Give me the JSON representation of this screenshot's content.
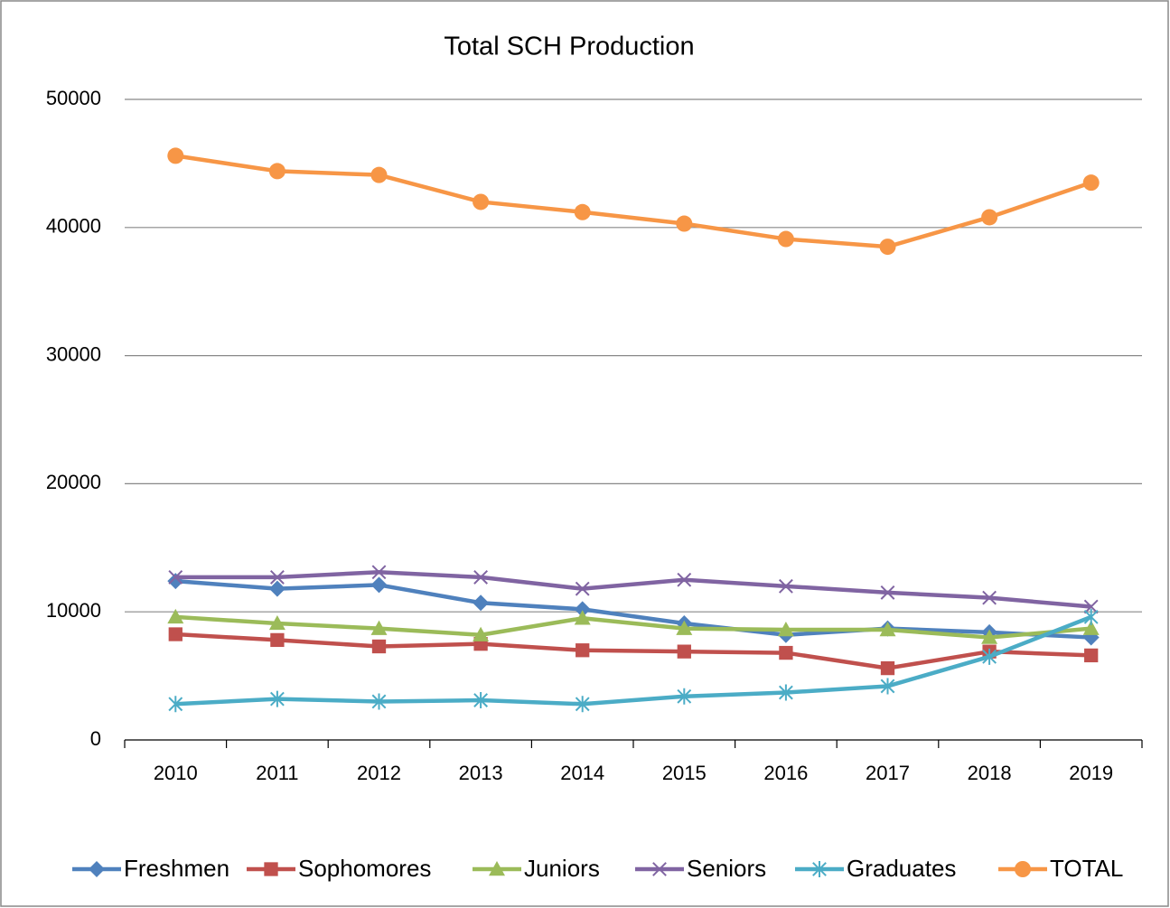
{
  "chart_data": {
    "type": "line",
    "title": "Total SCH Production",
    "categories": [
      "2010",
      "2011",
      "2012",
      "2013",
      "2014",
      "2015",
      "2016",
      "2017",
      "2018",
      "2019"
    ],
    "ylim": [
      0,
      50000
    ],
    "yticks": [
      0,
      10000,
      20000,
      30000,
      40000,
      50000
    ],
    "grid": true,
    "legend": "bottom",
    "series": [
      {
        "name": "Freshmen",
        "color": "#4f81bd",
        "marker": "diamond",
        "values": [
          12400,
          11800,
          12100,
          10700,
          10200,
          9100,
          8200,
          8700,
          8400,
          8000
        ]
      },
      {
        "name": "Sophomores",
        "color": "#c0504d",
        "marker": "square",
        "values": [
          8250,
          7800,
          7300,
          7500,
          7000,
          6900,
          6800,
          5600,
          6900,
          6600
        ]
      },
      {
        "name": "Juniors",
        "color": "#9bbb59",
        "marker": "triangle",
        "values": [
          9600,
          9100,
          8700,
          8200,
          9500,
          8700,
          8600,
          8600,
          8000,
          8700
        ]
      },
      {
        "name": "Seniors",
        "color": "#8064a2",
        "marker": "x",
        "values": [
          12700,
          12700,
          13100,
          12700,
          11800,
          12500,
          12000,
          11500,
          11100,
          10400
        ]
      },
      {
        "name": "Graduates",
        "color": "#4bacc6",
        "marker": "asterisk",
        "values": [
          2800,
          3200,
          3000,
          3100,
          2800,
          3400,
          3700,
          4200,
          6500,
          9600
        ]
      },
      {
        "name": "TOTAL",
        "color": "#f79646",
        "marker": "circle",
        "values": [
          45600,
          44400,
          44100,
          42000,
          41200,
          40300,
          39100,
          38500,
          40800,
          43500
        ]
      }
    ]
  }
}
